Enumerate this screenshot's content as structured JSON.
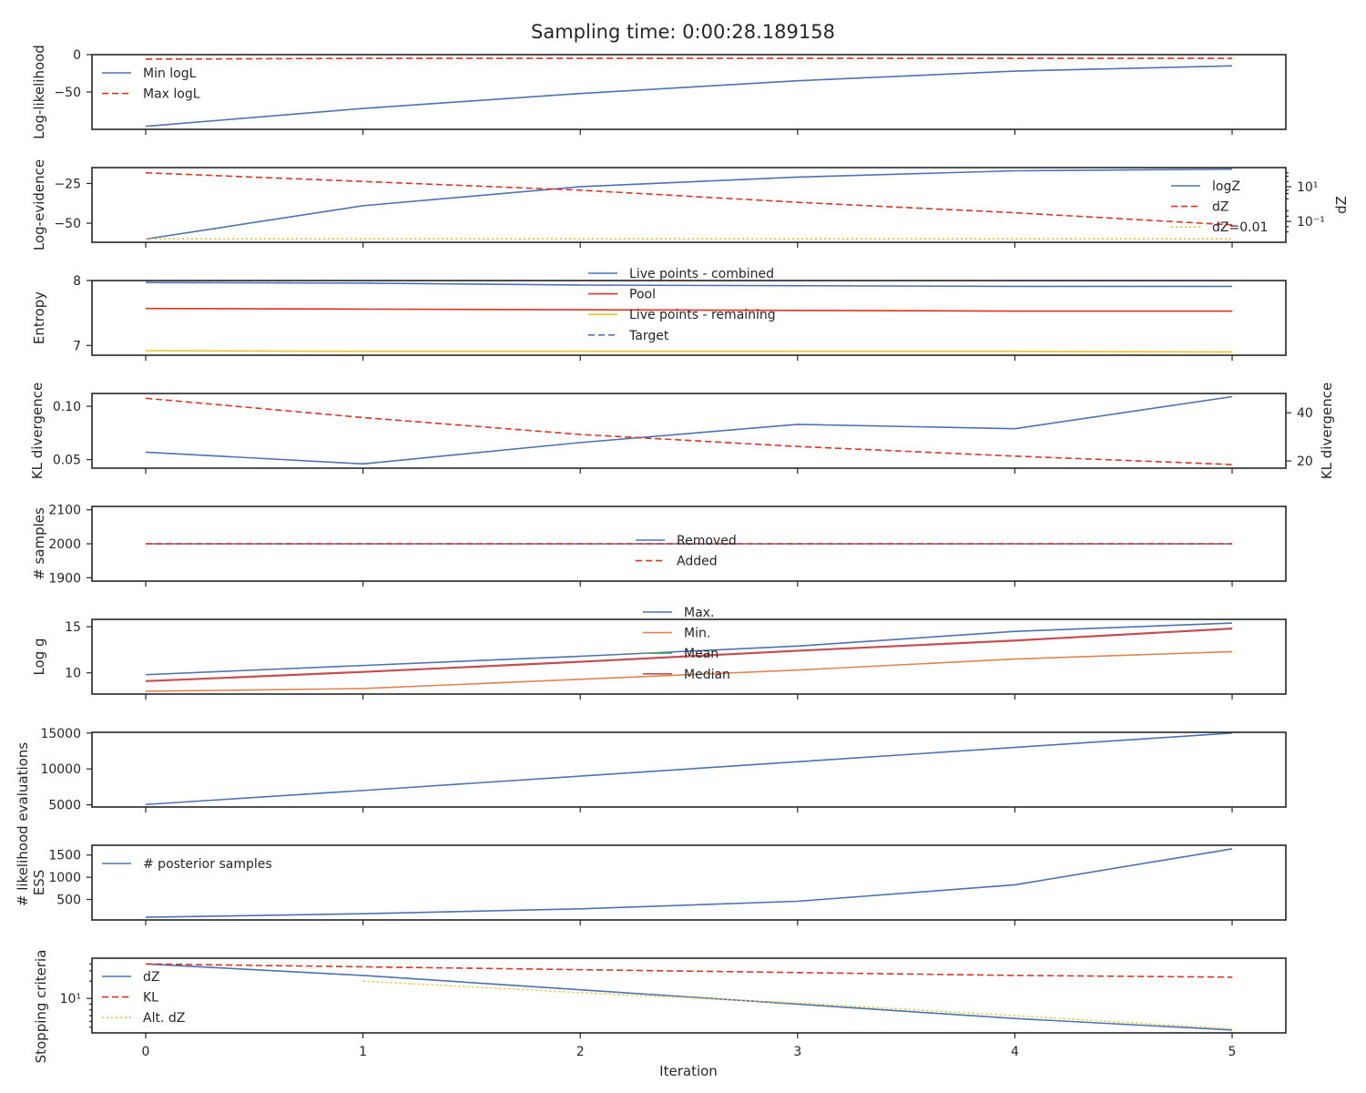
{
  "figure": {
    "title": "Sampling time: 0:00:28.189158"
  },
  "colors": {
    "blue": "#4c72b0",
    "red": "#dd3322",
    "orange": "#dd8452",
    "green": "#55a868",
    "brown": "#c44e52",
    "yellow": "#f2c12e",
    "target": "#4c72b0"
  },
  "chart_data": [
    {
      "type": "line",
      "ylabel": "Log-likelihood",
      "ylim": [
        -100,
        0
      ],
      "yticks": [
        0,
        -50
      ],
      "ytick_labels": [
        "0",
        "−50"
      ],
      "legend_loc": "upper left",
      "series": [
        {
          "name": "Min logL",
          "style": "solid",
          "color": "blue",
          "x": [
            0,
            1,
            2,
            3,
            4,
            5
          ],
          "y": [
            -96,
            -72,
            -52,
            -35,
            -22,
            -15
          ]
        },
        {
          "name": "Max logL",
          "style": "dashed",
          "color": "red",
          "x": [
            0,
            1,
            2,
            3,
            4,
            5
          ],
          "y": [
            -6,
            -5,
            -5,
            -5,
            -5,
            -5
          ]
        }
      ]
    },
    {
      "type": "line",
      "ylabel": "Log-evidence",
      "ylim": [
        -62,
        -15
      ],
      "yticks": [
        -25,
        -50
      ],
      "ytick_labels": [
        "−25",
        "−50"
      ],
      "y2label": "dZ",
      "y2scale": "log",
      "y2lim": [
        -2.2,
        2.1
      ],
      "y2ticks": [
        1,
        -1
      ],
      "y2tick_labels": [
        "10¹",
        "10⁻¹"
      ],
      "legend_loc": "right",
      "series": [
        {
          "name": "logZ",
          "style": "solid",
          "color": "blue",
          "axis": "left",
          "x": [
            0,
            1,
            2,
            3,
            4,
            5
          ],
          "y": [
            -60,
            -39,
            -27,
            -21,
            -17,
            -16
          ]
        },
        {
          "name": "dZ",
          "style": "dashed",
          "color": "red",
          "axis": "right",
          "x": [
            0,
            1,
            2,
            3,
            4,
            5
          ],
          "y": [
            1.8,
            1.3,
            0.8,
            0.1,
            -0.5,
            -1.2
          ]
        },
        {
          "name": "dZ=0.01",
          "style": "dotted",
          "color": "yellow",
          "axis": "right",
          "x": [
            0,
            5
          ],
          "y": [
            -2,
            -2
          ]
        }
      ]
    },
    {
      "type": "line",
      "ylabel": "Entropy",
      "ylim": [
        6.85,
        8.0
      ],
      "yticks": [
        8,
        7
      ],
      "ytick_labels": [
        "8",
        "7"
      ],
      "legend_loc": "upper center",
      "series": [
        {
          "name": "Live points - combined",
          "style": "solid",
          "color": "blue",
          "x": [
            0,
            1,
            2,
            3,
            4,
            5
          ],
          "y": [
            7.97,
            7.96,
            7.93,
            7.92,
            7.91,
            7.91
          ]
        },
        {
          "name": "Pool",
          "style": "solid",
          "color": "red",
          "x": [
            0,
            1,
            2,
            3,
            4,
            5
          ],
          "y": [
            7.57,
            7.56,
            7.55,
            7.54,
            7.53,
            7.53
          ]
        },
        {
          "name": "Live points - remaining",
          "style": "solid",
          "color": "yellow",
          "x": [
            0,
            1,
            2,
            3,
            4,
            5
          ],
          "y": [
            6.92,
            6.91,
            6.91,
            6.91,
            6.91,
            6.9
          ]
        },
        {
          "name": "Target",
          "style": "dashed",
          "color": "target",
          "x": [
            0,
            5
          ],
          "y": [
            8.0,
            8.0
          ]
        }
      ]
    },
    {
      "type": "line",
      "ylabel": "KL divergence",
      "ylim": [
        0.042,
        0.112
      ],
      "yticks": [
        0.1,
        0.05
      ],
      "ytick_labels": [
        "0.10",
        "0.05"
      ],
      "y2label": "KL divergence",
      "y2lim": [
        17,
        48
      ],
      "y2ticks": [
        40,
        20
      ],
      "y2tick_labels": [
        "40",
        "20"
      ],
      "series": [
        {
          "name": "",
          "style": "solid",
          "color": "blue",
          "axis": "left",
          "x": [
            0,
            1,
            2,
            3,
            4,
            5
          ],
          "y": [
            0.057,
            0.046,
            0.066,
            0.083,
            0.079,
            0.109
          ]
        },
        {
          "name": "",
          "style": "dashed",
          "color": "red",
          "axis": "right",
          "x": [
            0,
            1,
            2,
            3,
            4,
            5
          ],
          "y": [
            46,
            38,
            31,
            26,
            22,
            18.5
          ]
        }
      ]
    },
    {
      "type": "line",
      "ylabel": "# samples",
      "ylim": [
        1890,
        2110
      ],
      "yticks": [
        2100,
        2000,
        1900
      ],
      "ytick_labels": [
        "2100",
        "2000",
        "1900"
      ],
      "legend_loc": "center",
      "series": [
        {
          "name": "Removed",
          "style": "solid",
          "color": "blue",
          "x": [
            0,
            1,
            2,
            3,
            4,
            5
          ],
          "y": [
            2000,
            2000,
            2000,
            2000,
            2000,
            2000
          ]
        },
        {
          "name": "Added",
          "style": "dashed",
          "color": "red",
          "x": [
            0,
            1,
            2,
            3,
            4,
            5
          ],
          "y": [
            2000,
            2000,
            2000,
            2000,
            2000,
            2000
          ]
        }
      ]
    },
    {
      "type": "line",
      "ylabel": "Log g",
      "ylim": [
        7.7,
        15.8
      ],
      "yticks": [
        15,
        10
      ],
      "ytick_labels": [
        "15",
        "10"
      ],
      "legend_loc": "upper center",
      "series": [
        {
          "name": "Max.",
          "style": "solid",
          "color": "blue",
          "x": [
            0,
            1,
            2,
            3,
            4,
            5
          ],
          "y": [
            9.8,
            10.8,
            11.8,
            12.9,
            14.5,
            15.4
          ]
        },
        {
          "name": "Min.",
          "style": "solid",
          "color": "orange",
          "x": [
            0,
            1,
            2,
            3,
            4,
            5
          ],
          "y": [
            8.0,
            8.3,
            9.3,
            10.3,
            11.5,
            12.3
          ]
        },
        {
          "name": "Mean",
          "style": "solid",
          "color": "green",
          "x": [
            0,
            1,
            2,
            3,
            4,
            5
          ],
          "y": [
            9.1,
            10.1,
            11.2,
            12.4,
            13.5,
            14.8
          ]
        },
        {
          "name": "Median",
          "style": "solid",
          "color": "brown",
          "x": [
            0,
            1,
            2,
            3,
            4,
            5
          ],
          "y": [
            9.1,
            10.1,
            11.2,
            12.4,
            13.5,
            14.8
          ]
        }
      ]
    },
    {
      "type": "line",
      "ylabel": "# likelihood evaluations",
      "ylim": [
        4700,
        15100
      ],
      "yticks": [
        15000,
        10000,
        5000
      ],
      "ytick_labels": [
        "15000",
        "10000",
        "5000"
      ],
      "series": [
        {
          "name": "",
          "style": "solid",
          "color": "blue",
          "x": [
            0,
            1,
            2,
            3,
            4,
            5
          ],
          "y": [
            5050,
            7000,
            9000,
            11000,
            13000,
            15000
          ]
        }
      ]
    },
    {
      "type": "line",
      "ylabel": "ESS",
      "ylim": [
        40,
        1720
      ],
      "yticks": [
        1500,
        1000,
        500
      ],
      "ytick_labels": [
        "1500",
        "1000",
        "500"
      ],
      "legend_loc": "upper left",
      "series": [
        {
          "name": "# posterior samples",
          "style": "solid",
          "color": "blue",
          "x": [
            0,
            1,
            2,
            3,
            4,
            5
          ],
          "y": [
            100,
            180,
            290,
            460,
            830,
            1640
          ]
        }
      ]
    },
    {
      "type": "line",
      "ylabel": "Stopping criteria",
      "yscale": "log",
      "ylim": [
        0.4,
        1.7
      ],
      "yticks": [
        1
      ],
      "ytick_labels": [
        "10¹"
      ],
      "xlabel": "Iteration",
      "xticks": [
        0,
        1,
        2,
        3,
        4,
        5
      ],
      "xtick_labels": [
        "0",
        "1",
        "2",
        "3",
        "4",
        "5"
      ],
      "legend_loc": "left",
      "series": [
        {
          "name": "dZ",
          "style": "solid",
          "color": "blue",
          "x": [
            0,
            1,
            2,
            3,
            4,
            5
          ],
          "y": [
            1.6,
            1.4,
            1.15,
            0.9,
            0.65,
            0.45
          ]
        },
        {
          "name": "KL",
          "style": "dashed",
          "color": "red",
          "x": [
            0,
            1,
            2,
            3,
            4,
            5
          ],
          "y": [
            1.6,
            1.55,
            1.5,
            1.45,
            1.4,
            1.37
          ]
        },
        {
          "name": "Alt. dZ",
          "style": "dotted",
          "color": "yellow",
          "x": [
            1,
            2,
            3,
            4,
            5
          ],
          "y": [
            1.3,
            1.1,
            0.92,
            0.7,
            0.47
          ]
        }
      ]
    }
  ]
}
